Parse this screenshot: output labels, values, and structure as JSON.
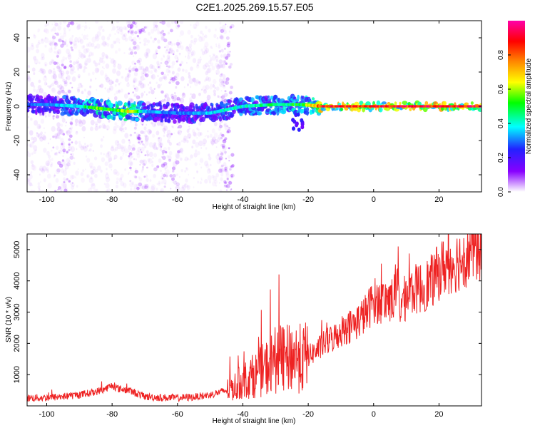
{
  "title": "C2E1.2025.269.15.57.E05",
  "chart_data": [
    {
      "type": "heatmap",
      "name": "spectrogram",
      "xlabel": "Height of straight line (km)",
      "ylabel": "Frequency (Hz)",
      "xlim": [
        -106,
        33
      ],
      "ylim": [
        -50,
        50
      ],
      "xticks": [
        -100,
        -80,
        -60,
        -40,
        -20,
        0,
        20
      ],
      "yticks": [
        -40,
        -20,
        0,
        20,
        40
      ],
      "grid": false,
      "description_points": [
        {
          "x": -100,
          "ridge_freq": 1,
          "amp": 0.3
        },
        {
          "x": -90,
          "ridge_freq": 0,
          "amp": 0.4
        },
        {
          "x": -85,
          "ridge_freq": -1,
          "amp": 0.55
        },
        {
          "x": -80,
          "ridge_freq": -2,
          "amp": 0.5
        },
        {
          "x": -75,
          "ridge_freq": -3,
          "amp": 0.65
        },
        {
          "x": -70,
          "ridge_freq": -3,
          "amp": 0.35
        },
        {
          "x": -60,
          "ridge_freq": -4,
          "amp": 0.3
        },
        {
          "x": -50,
          "ridge_freq": -4,
          "amp": 0.35
        },
        {
          "x": -45,
          "ridge_freq": -2,
          "amp": 0.4
        },
        {
          "x": -40,
          "ridge_freq": 0,
          "amp": 0.4
        },
        {
          "x": -30,
          "ridge_freq": 1,
          "amp": 0.45
        },
        {
          "x": -22,
          "ridge_freq": 1,
          "amp": 0.5
        },
        {
          "x": -16,
          "ridge_freq": 0,
          "amp": 0.85
        },
        {
          "x": 0,
          "ridge_freq": 0,
          "amp": 0.88
        },
        {
          "x": 20,
          "ridge_freq": 0,
          "amp": 0.9
        },
        {
          "x": 33,
          "ridge_freq": 0,
          "amp": 0.92
        }
      ]
    },
    {
      "type": "line",
      "name": "snr",
      "xlabel": "Height of straight line (km)",
      "ylabel": "SNR (10 * v/v)",
      "xlim": [
        -106,
        33
      ],
      "ylim": [
        0,
        5500
      ],
      "xticks": [
        -100,
        -80,
        -60,
        -40,
        -20,
        0,
        20
      ],
      "yticks": [
        1000,
        2000,
        3000,
        4000,
        5000
      ],
      "color": "#ee2222",
      "series": [
        {
          "name": "SNR",
          "x": [
            -106,
            -100,
            -95,
            -90,
            -85,
            -82,
            -80,
            -78,
            -75,
            -70,
            -65,
            -60,
            -55,
            -50,
            -45,
            -42,
            -40,
            -36,
            -33,
            -30,
            -27,
            -25,
            -22,
            -20,
            -17,
            -15,
            -12,
            -10,
            -8,
            -5,
            -2,
            0,
            2,
            4,
            6,
            7,
            8,
            10,
            12,
            15,
            18,
            20,
            22,
            25,
            28,
            30,
            33
          ],
          "values": [
            250,
            260,
            300,
            350,
            450,
            550,
            650,
            550,
            500,
            300,
            260,
            260,
            280,
            350,
            500,
            650,
            800,
            1000,
            1200,
            1500,
            1450,
            1600,
            1500,
            1600,
            1800,
            2000,
            2200,
            2400,
            2500,
            2700,
            3000,
            3400,
            3300,
            3400,
            3400,
            3900,
            3200,
            3500,
            3700,
            3800,
            4000,
            4300,
            4500,
            4600,
            4800,
            5000,
            5100
          ]
        }
      ]
    }
  ],
  "colorbar": {
    "label": "Normalized spectral amplitude",
    "ticks": [
      "0.0",
      "0.2",
      "0.4",
      "0.6",
      "0.8"
    ],
    "tick_values": [
      0.0,
      0.2,
      0.4,
      0.6,
      0.8
    ],
    "range": [
      0,
      1
    ],
    "colors": [
      "#ffffff",
      "#8800ff",
      "#2222ff",
      "#00ffff",
      "#00ff00",
      "#ffff00",
      "#ff8800",
      "#ff0000",
      "#ff00aa"
    ]
  }
}
